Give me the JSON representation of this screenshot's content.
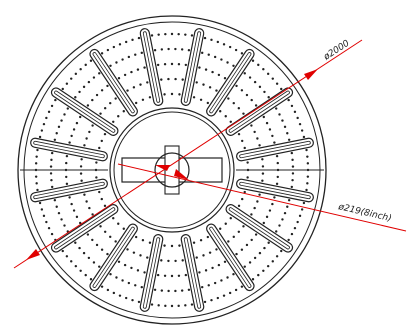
{
  "drawing": {
    "dimensions": {
      "outer_diameter": {
        "label": "ø2000"
      },
      "pipe_diameter": {
        "label": "ø219(8inch)"
      }
    },
    "counts": {
      "radial_ribs": 16,
      "perforation_rings": 5
    },
    "colors": {
      "line": "#222222",
      "dimension": "#e00000",
      "background": "#ffffff"
    }
  }
}
